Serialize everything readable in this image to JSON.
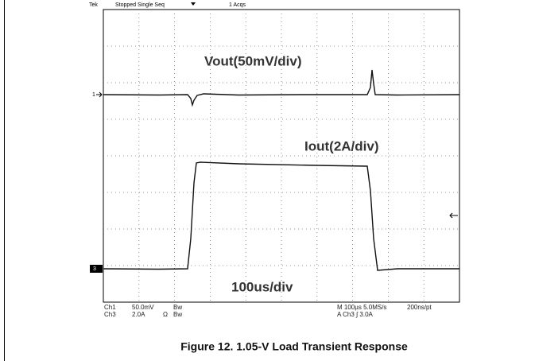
{
  "scope": {
    "status": {
      "brand": "Tek",
      "state": "Stopped",
      "mode": "Single Seq",
      "acqs": "1 Acqs"
    },
    "traces": {
      "vout": "Vout(50mV/div)",
      "iout": "Iout(2A/div)",
      "timebase": "100us/div"
    },
    "markers": {
      "ch1": "1",
      "ch3": "3"
    },
    "readout": {
      "ch1": "Ch1",
      "ch1_scale": "50.0mV",
      "ch1_bw": "Bw",
      "ch3": "Ch3",
      "ch3_scale": "2.0A",
      "ch3_ohm": "Ω",
      "ch3_bw": "Bw",
      "horizontal": "M 100µs 5.0MS/s",
      "resolution": "200ns/pt",
      "trigger": "A  Ch3  ∫  3.0A"
    }
  },
  "caption": "Figure 12. 1.05-V Load Transient Response"
}
